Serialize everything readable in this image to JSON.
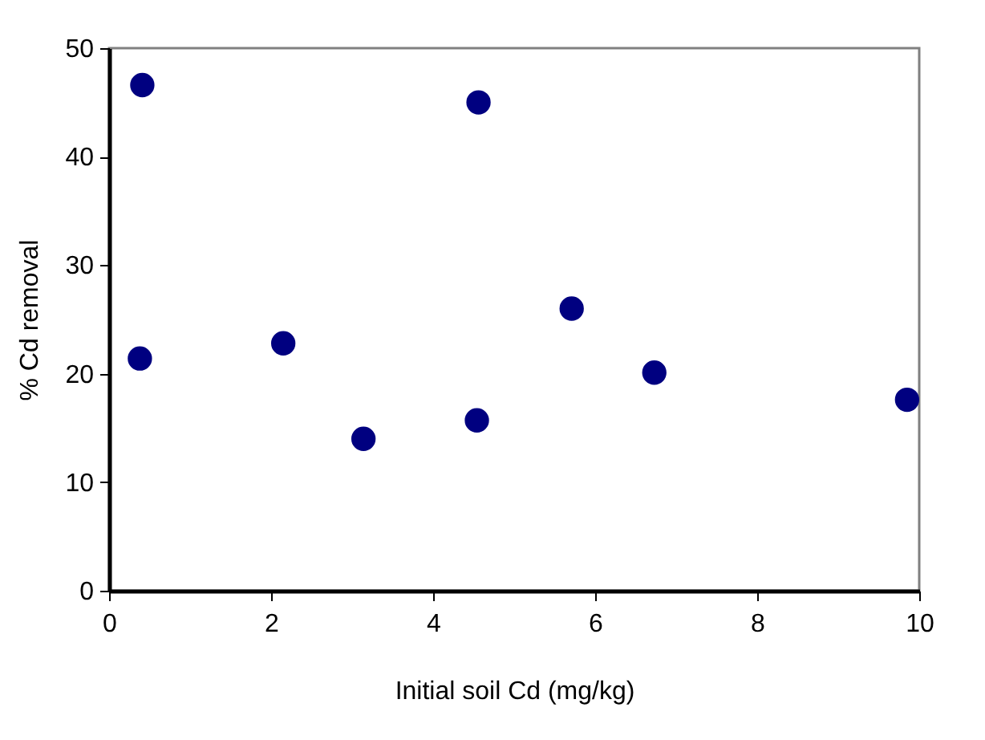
{
  "chart_data": {
    "type": "scatter",
    "xlabel": "Initial soil Cd (mg/kg)",
    "ylabel": "% Cd removal",
    "x": [
      0.41,
      0.38,
      2.15,
      3.14,
      4.56,
      4.54,
      5.71,
      6.73,
      9.85
    ],
    "series": [
      {
        "color": "#000080",
        "values": [
          46.6,
          21.4,
          22.8,
          14.0,
          45.0,
          15.7,
          26.0,
          20.1,
          17.6
        ]
      }
    ],
    "xlim": [
      0,
      10
    ],
    "ylim": [
      0,
      50
    ],
    "xticks": [
      0,
      2,
      4,
      6,
      8,
      10
    ],
    "yticks": [
      0,
      10,
      20,
      30,
      40,
      50
    ],
    "marker": "circle",
    "grid": false,
    "legend": false
  }
}
